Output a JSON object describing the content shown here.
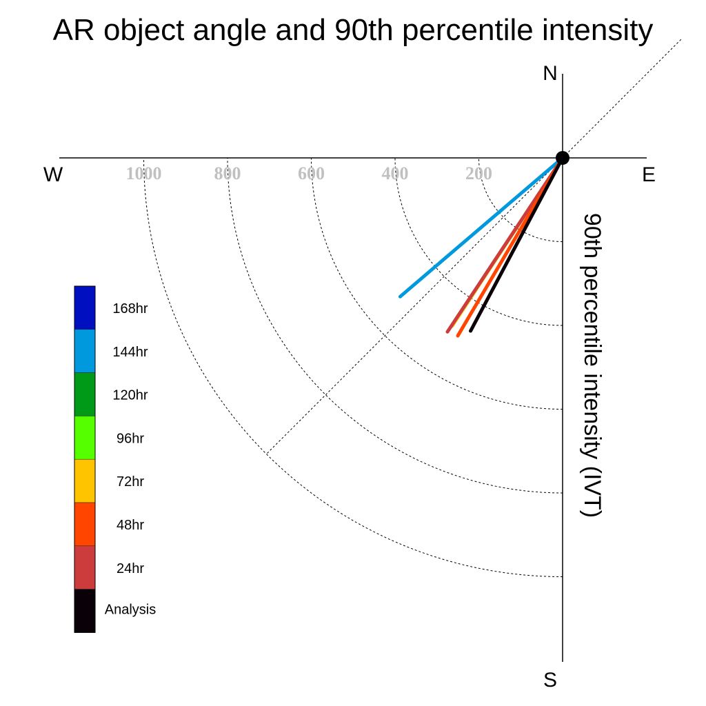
{
  "chart_data": {
    "type": "polar-vector",
    "title": "AR object angle and 90th percentile intensity",
    "ylabel": "90th percentile intensity (IVT)",
    "compass": {
      "north": "N",
      "south": "S",
      "east": "E",
      "west": "W"
    },
    "radial_ticks": [
      200,
      400,
      600,
      800,
      1000
    ],
    "radial_tick_labels": [
      "200",
      "400",
      "600",
      "800",
      "1000"
    ],
    "rlim": [
      0,
      1200
    ],
    "angle_convention": "degrees clockwise from north",
    "grid": true,
    "legend_position": "left",
    "legend": [
      {
        "label": "168hr",
        "color": "#0010c0"
      },
      {
        "label": "144hr",
        "color": "#0099dd"
      },
      {
        "label": "120hr",
        "color": "#009918"
      },
      {
        "label": "96hr",
        "color": "#55ff00"
      },
      {
        "label": "72hr",
        "color": "#ffc400"
      },
      {
        "label": "48hr",
        "color": "#ff4500"
      },
      {
        "label": "24hr",
        "color": "#cc3c3c"
      },
      {
        "label": "Analysis",
        "color": "#0a0008"
      }
    ],
    "series": [
      {
        "name": "144hr",
        "color": "#0099dd",
        "angle_deg": 229.5,
        "intensity": 510
      },
      {
        "name": "72hr",
        "color": "#ffc400",
        "angle_deg": 213.3,
        "intensity": 480
      },
      {
        "name": "24hr",
        "color": "#cc3c3c",
        "angle_deg": 213.5,
        "intensity": 498
      },
      {
        "name": "48hr",
        "color": "#ff4500",
        "angle_deg": 210.5,
        "intensity": 493
      },
      {
        "name": "Analysis",
        "color": "#0a0008",
        "angle_deg": 208.0,
        "intensity": 468
      }
    ]
  }
}
